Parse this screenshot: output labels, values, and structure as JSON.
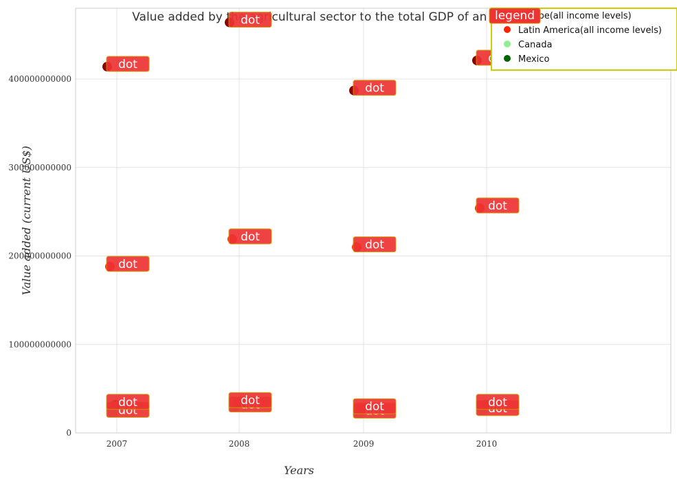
{
  "chart_data": {
    "type": "scatter",
    "title": "Value added by the agricultural sector to the total GDP of an economy",
    "xlabel": "Years",
    "ylabel": "Value added (current US$)",
    "categories": [
      "2007",
      "2008",
      "2009",
      "2010"
    ],
    "ylim": [
      0,
      480000000000
    ],
    "y_ticks": [
      0,
      100000000000,
      200000000000,
      300000000000,
      400000000000
    ],
    "y_tick_labels": [
      "0",
      "100000000000",
      "200000000000",
      "300000000000",
      "400000000000"
    ],
    "grid": true,
    "legend_title": "legend",
    "legend_position": "top-right",
    "point_tag_text": "dot",
    "series": [
      {
        "name": "Europe(all income levels)",
        "color": "#8b0000",
        "values": [
          414000000000,
          464000000000,
          387000000000,
          421000000000
        ]
      },
      {
        "name": "Latin America(all income levels)",
        "color": "#ff2200",
        "values": [
          188000000000,
          219000000000,
          210000000000,
          254000000000
        ]
      },
      {
        "name": "Canada",
        "color": "#90ee90",
        "values": [
          23000000000,
          29000000000,
          22000000000,
          25000000000
        ]
      },
      {
        "name": "Mexico",
        "color": "#006400",
        "values": [
          32000000000,
          34000000000,
          27000000000,
          32000000000
        ]
      }
    ],
    "colors": {
      "tag_fill": "#ee3333",
      "tag_border": "#cc9900",
      "legend_border": "#cccc00"
    }
  }
}
